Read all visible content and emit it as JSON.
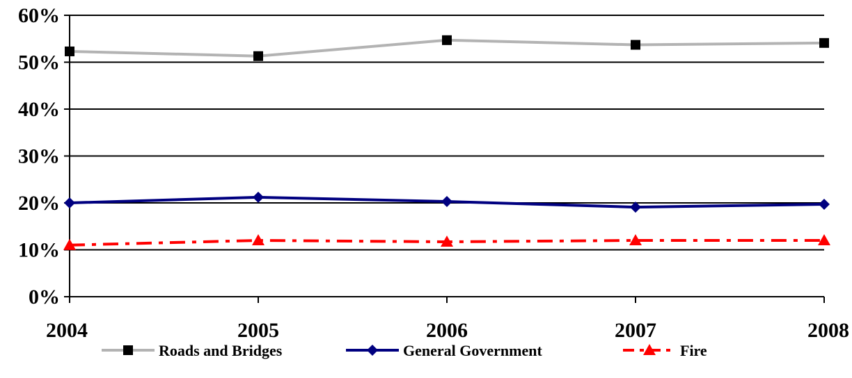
{
  "chart_data": {
    "type": "line",
    "title": "",
    "xlabel": "",
    "ylabel": "",
    "categories": [
      "2004",
      "2005",
      "2006",
      "2007",
      "2008"
    ],
    "y_ticks": [
      "0%",
      "10%",
      "20%",
      "30%",
      "40%",
      "50%",
      "60%"
    ],
    "ylim": [
      0,
      60
    ],
    "grid": true,
    "legend_position": "bottom",
    "series": [
      {
        "name": "Roads and Bridges",
        "values": [
          52.3,
          51.3,
          54.7,
          53.7,
          54.1
        ],
        "color": "#b3b3b3",
        "marker": "square",
        "marker_color": "#000000",
        "line_style": "solid"
      },
      {
        "name": "General Government",
        "values": [
          20.0,
          21.2,
          20.3,
          19.1,
          19.7
        ],
        "color": "#000080",
        "marker": "diamond",
        "marker_color": "#000080",
        "line_style": "solid"
      },
      {
        "name": "Fire",
        "values": [
          11.0,
          12.0,
          11.7,
          12.0,
          12.0
        ],
        "color": "#ff0000",
        "marker": "triangle",
        "marker_color": "#ff0000",
        "line_style": "dash-dot"
      }
    ]
  }
}
